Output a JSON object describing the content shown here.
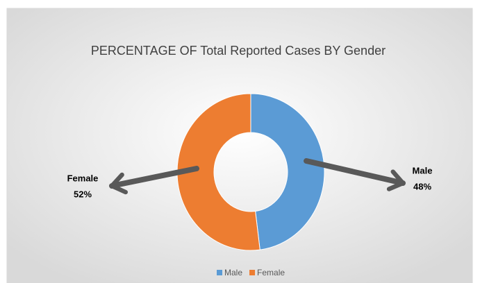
{
  "chart_data": {
    "type": "pie",
    "donut": true,
    "title": "PERCENTAGE OF Total Reported Cases BY Gender",
    "categories": [
      "Male",
      "Female"
    ],
    "values": [
      48,
      52
    ],
    "value_labels": [
      "48%",
      "52%"
    ],
    "colors": [
      "#5b9bd5",
      "#ed7d31"
    ],
    "legend": "bottom"
  }
}
